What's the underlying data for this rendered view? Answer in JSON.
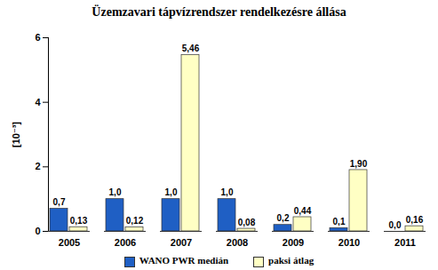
{
  "chart_data": {
    "type": "bar",
    "title": "Üzemzavari tápvízrendszer rendelkezésre állása",
    "y_label": "[10⁻³]",
    "categories": [
      "2005",
      "2006",
      "2007",
      "2008",
      "2009",
      "2010",
      "2011"
    ],
    "series": [
      {
        "name": "WANO PWR medián",
        "color": "#1f5fc4",
        "values": [
          0.7,
          1.0,
          1.0,
          1.0,
          0.2,
          0.1,
          0.0
        ],
        "value_labels": [
          "0,7",
          "1,0",
          "1,0",
          "1,0",
          "0,2",
          "0,1",
          "0,0"
        ]
      },
      {
        "name": "paksi átlag",
        "color": "#ffffc4",
        "values": [
          0.13,
          0.12,
          5.46,
          0.08,
          0.44,
          1.9,
          0.16
        ],
        "value_labels": [
          "0,13",
          "0,12",
          "5,46",
          "0,08",
          "0,44",
          "1,90",
          "0,16"
        ]
      }
    ],
    "ylim": [
      0,
      6
    ],
    "yticks": [
      0,
      2,
      4,
      6
    ],
    "grid": false,
    "data_labels": true,
    "legend": "bottom"
  }
}
